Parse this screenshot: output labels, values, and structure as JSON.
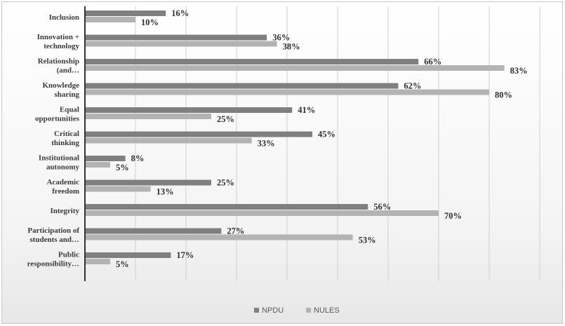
{
  "chart_data": {
    "type": "bar",
    "orientation": "horizontal",
    "categories": [
      [
        "Inclusion"
      ],
      [
        "Innovation +",
        "technology"
      ],
      [
        "Relationship",
        "(and…"
      ],
      [
        "Knowledge",
        "sharing"
      ],
      [
        "Equal",
        "opportunities"
      ],
      [
        "Critical",
        "thinking"
      ],
      [
        "Institutional",
        "autonomy"
      ],
      [
        "Academic",
        "freedom"
      ],
      [
        "Integrity"
      ],
      [
        "Participation of",
        "students and…"
      ],
      [
        "Public",
        "responsibility…"
      ]
    ],
    "series": [
      {
        "name": "NPDU",
        "color": "#7f7f7f",
        "values": [
          16,
          36,
          66,
          62,
          41,
          45,
          8,
          25,
          56,
          27,
          17
        ]
      },
      {
        "name": "NULES",
        "color": "#b3b3b3",
        "values": [
          10,
          38,
          83,
          80,
          25,
          33,
          5,
          13,
          70,
          53,
          5
        ]
      }
    ],
    "value_suffix": "%",
    "xlim": [
      0,
      90
    ],
    "grid": true,
    "legend_position": "bottom"
  }
}
